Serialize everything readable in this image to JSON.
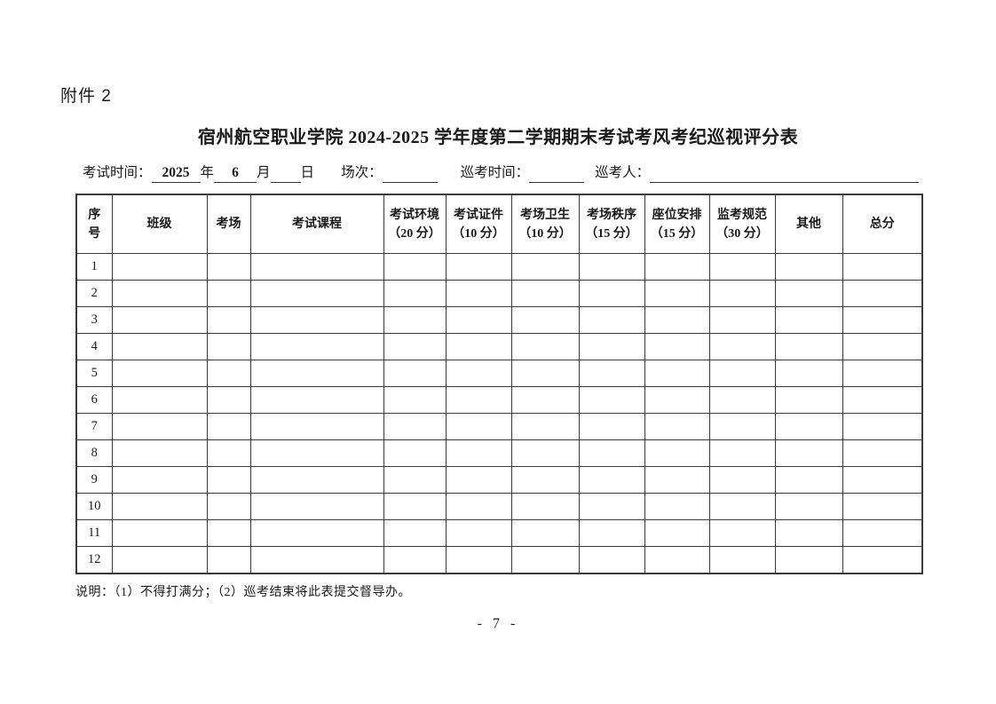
{
  "page": {
    "attachment_label": "附件 2",
    "title": "宿州航空职业学院 2024-2025 学年度第二学期期末考试考风考纪巡视评分表",
    "note": "说明：（1）不得打满分；（2）巡考结束将此表提交督导办。",
    "page_number": "- 7 -"
  },
  "form": {
    "exam_time_label": "考试时间：",
    "year_value": "2025",
    "year_suffix": "年",
    "month_value": "6",
    "month_suffix": "月",
    "day_value": "",
    "day_suffix": "日",
    "session_label": "场次：",
    "session_value": "",
    "patrol_time_label": "巡考时间：",
    "patrol_time_value": "",
    "inspector_label": "巡考人：",
    "inspector_value": ""
  },
  "table": {
    "headers": [
      "序\n号",
      "班级",
      "考场",
      "考试课程",
      "考试环境\n（20 分）",
      "考试证件\n（10 分）",
      "考场卫生\n（10 分）",
      "考场秩序\n（15 分）",
      "座位安排\n（15 分）",
      "监考规范\n（30 分）",
      "其他",
      "总分"
    ],
    "rows": [
      [
        "1",
        "",
        "",
        "",
        "",
        "",
        "",
        "",
        "",
        "",
        "",
        ""
      ],
      [
        "2",
        "",
        "",
        "",
        "",
        "",
        "",
        "",
        "",
        "",
        "",
        ""
      ],
      [
        "3",
        "",
        "",
        "",
        "",
        "",
        "",
        "",
        "",
        "",
        "",
        ""
      ],
      [
        "4",
        "",
        "",
        "",
        "",
        "",
        "",
        "",
        "",
        "",
        "",
        ""
      ],
      [
        "5",
        "",
        "",
        "",
        "",
        "",
        "",
        "",
        "",
        "",
        "",
        ""
      ],
      [
        "6",
        "",
        "",
        "",
        "",
        "",
        "",
        "",
        "",
        "",
        "",
        ""
      ],
      [
        "7",
        "",
        "",
        "",
        "",
        "",
        "",
        "",
        "",
        "",
        "",
        ""
      ],
      [
        "8",
        "",
        "",
        "",
        "",
        "",
        "",
        "",
        "",
        "",
        "",
        ""
      ],
      [
        "9",
        "",
        "",
        "",
        "",
        "",
        "",
        "",
        "",
        "",
        "",
        ""
      ],
      [
        "10",
        "",
        "",
        "",
        "",
        "",
        "",
        "",
        "",
        "",
        "",
        ""
      ],
      [
        "11",
        "",
        "",
        "",
        "",
        "",
        "",
        "",
        "",
        "",
        "",
        ""
      ],
      [
        "12",
        "",
        "",
        "",
        "",
        "",
        "",
        "",
        "",
        "",
        "",
        ""
      ]
    ]
  }
}
